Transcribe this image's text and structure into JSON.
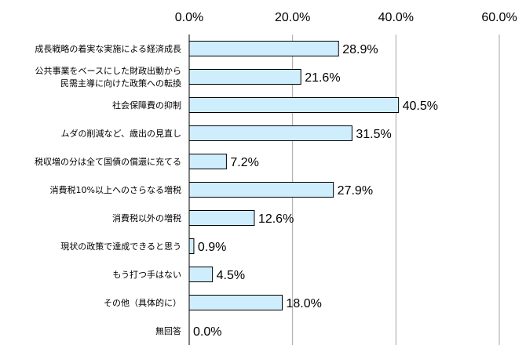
{
  "chart_data": {
    "type": "bar",
    "orientation": "horizontal",
    "categories": [
      [
        "成長戦略の着実な実施による経済成長"
      ],
      [
        "公共事業をベースにした財政出動から",
        "民需主導に向けた政策への転換"
      ],
      [
        "社会保障費の抑制"
      ],
      [
        "ムダの削減など、歳出の見直し"
      ],
      [
        "税収増の分は全て国債の償還に充てる"
      ],
      [
        "消費税10%以上へのさらなる増税"
      ],
      [
        "消費税以外の増税"
      ],
      [
        "現状の政策で達成できると思う"
      ],
      [
        "もう打つ手はない"
      ],
      [
        "その他（具体的に）"
      ],
      [
        "無回答"
      ]
    ],
    "values": [
      28.9,
      21.6,
      40.5,
      31.5,
      7.2,
      27.9,
      12.6,
      0.9,
      4.5,
      18.0,
      0.0
    ],
    "value_labels": [
      "28.9%",
      "21.6%",
      "40.5%",
      "31.5%",
      "7.2%",
      "27.9%",
      "12.6%",
      "0.9%",
      "4.5%",
      "18.0%",
      "0.0%"
    ],
    "xlim": [
      0,
      60
    ],
    "xticks": [
      0,
      20,
      40,
      60
    ],
    "xtick_labels": [
      "0.0%",
      "20.0%",
      "40.0%",
      "60.0%"
    ],
    "x_axis_position": "top",
    "grid": "vertical",
    "bar_fill": "#cfeefd",
    "bar_stroke": "#000000",
    "grid_color": "#a6a6a6"
  }
}
